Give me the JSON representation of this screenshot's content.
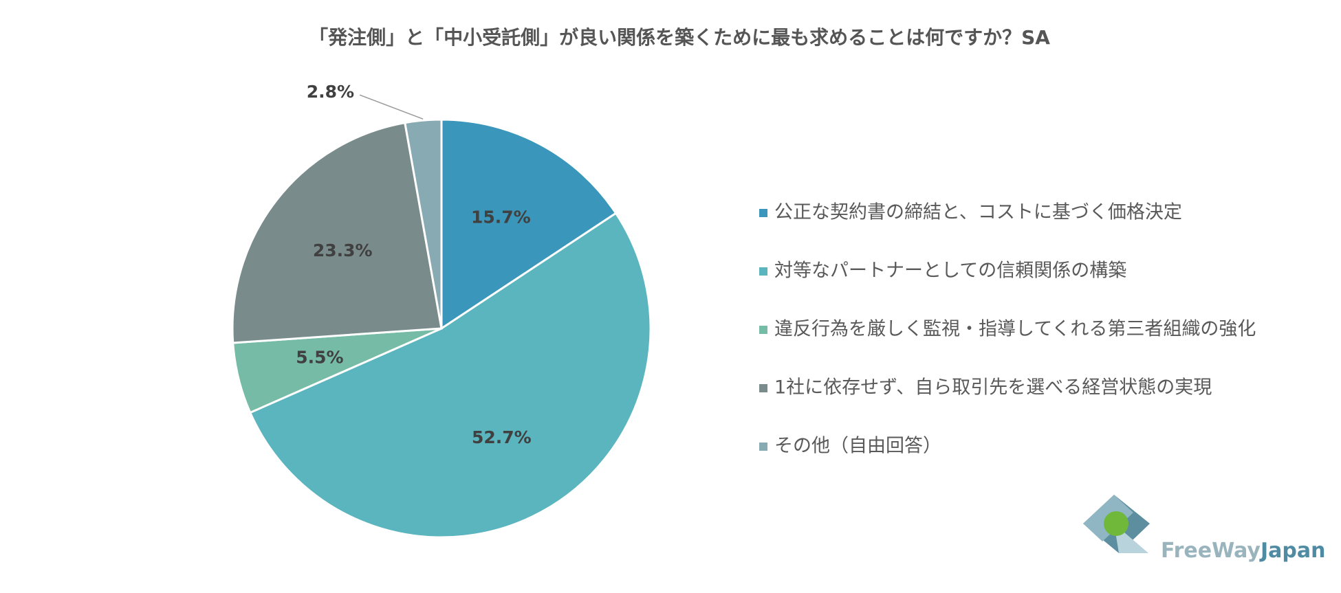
{
  "chart_data": {
    "type": "pie",
    "title": "「発注側」と「中小受託側」が良い関係を築くために最も求めることは何ですか？SA",
    "categories": [
      "公正な契約書の締結と、コストに基づく価格決定",
      "対等なパートナーとしての信頼関係の構築",
      "違反行為を厳しく監視・指導してくれる第三者組織の強化",
      "1社に依存せず、自ら取引先を選べる経営状態の実現",
      "その他（自由回答）"
    ],
    "values": [
      15.7,
      52.7,
      5.5,
      23.3,
      2.8
    ],
    "value_labels": [
      "15.7%",
      "52.7%",
      "5.5%",
      "23.3%",
      "2.8%"
    ],
    "colors": [
      "#3a97bb",
      "#5ab5be",
      "#75bba5",
      "#7a8b8c",
      "#87aab3"
    ],
    "legend": "right"
  },
  "logo": {
    "part1": "FreeWay",
    "part2": "Japan"
  }
}
